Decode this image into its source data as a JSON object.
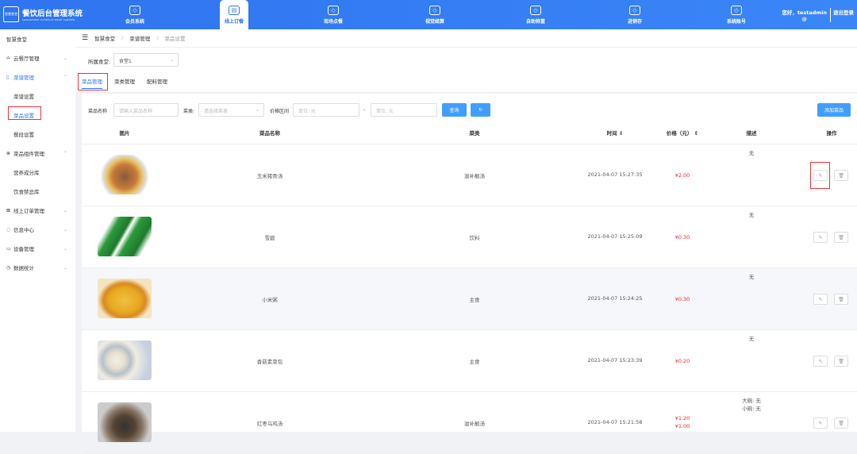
{
  "header": {
    "logo_badge": "智慧食堂",
    "title": "餐饮后台管理系统",
    "subtitle": "MANAGEMENT SYSTEM OF SMART CANTEEN",
    "nav": [
      {
        "label": "会员系统",
        "icon": "diamond-icon"
      },
      {
        "label": "线上订餐",
        "icon": "shop-icon",
        "active": true
      },
      {
        "label": "现场点餐",
        "icon": "dish-icon"
      },
      {
        "label": "视觉结算",
        "icon": "scan-eye-icon"
      },
      {
        "label": "自助称重",
        "icon": "scale-icon"
      },
      {
        "label": "进销存",
        "icon": "warehouse-icon"
      },
      {
        "label": "系统账号",
        "icon": "users-icon"
      }
    ],
    "greeting": "您好，testadmin",
    "user_suffix": "@",
    "logout": "退出登录"
  },
  "sidebar": {
    "title": "智慧食堂",
    "items": [
      {
        "label": "云餐厅管理",
        "icon": "restaurant-icon",
        "chev": "⌄"
      },
      {
        "label": "菜谱管理",
        "icon": "book-icon",
        "chev": "⌃",
        "active": true
      },
      {
        "label": "菜谱设置",
        "sub": true
      },
      {
        "label": "菜品设置",
        "sub": true,
        "active": true
      },
      {
        "label": "餐段设置",
        "sub": true
      },
      {
        "label": "菜品组件管理",
        "icon": "component-icon",
        "chev": "⌃"
      },
      {
        "label": "营养成分库",
        "sub": true
      },
      {
        "label": "饮食禁忌库",
        "sub": true
      },
      {
        "label": "线上订单管理",
        "icon": "order-icon",
        "chev": "⌄"
      },
      {
        "label": "信息中心",
        "icon": "message-icon",
        "chev": "⌄"
      },
      {
        "label": "设备管理",
        "icon": "device-icon",
        "chev": "⌄"
      },
      {
        "label": "数据统计",
        "icon": "chart-icon",
        "chev": "⌄"
      }
    ]
  },
  "breadcrumb": [
    "智慧食堂",
    "菜谱管理",
    "菜品设置"
  ],
  "filter": {
    "canteen_label": "所属食堂:",
    "canteen_value": "食堂1"
  },
  "tabs": [
    "菜品管理",
    "菜类管理",
    "配料管理"
  ],
  "search": {
    "name_label": "菜品名称",
    "name_placeholder": "请输入菜品名称",
    "cat_label": "菜类:",
    "cat_placeholder": "请选择菜类",
    "price_label": "价格区间",
    "price_min_placeholder": "单位: 元",
    "dash": "-",
    "price_max_placeholder": "单位: 元",
    "query": "查询",
    "reset_icon": "refresh-icon",
    "add": "添加菜品"
  },
  "table": {
    "columns": [
      "图片",
      "菜品名称",
      "菜类",
      "时间 ⇕",
      "价格（元） ⇕",
      "描述",
      "操作"
    ],
    "rows": [
      {
        "name": "玉米猪骨汤",
        "category": "滋补靓汤",
        "time": "2021-04-07 15:27:35",
        "prices": [
          "¥2.00"
        ],
        "desc": [
          "无"
        ]
      },
      {
        "name": "雪碧",
        "category": "饮料",
        "time": "2021-04-07 15:25:09",
        "prices": [
          "¥0.30"
        ],
        "desc": [
          "无"
        ]
      },
      {
        "name": "小米粥",
        "category": "主食",
        "time": "2021-04-07 15:24:25",
        "prices": [
          "¥0.30"
        ],
        "desc": [
          "无"
        ]
      },
      {
        "name": "香菇素菜包",
        "category": "主食",
        "time": "2021-04-07 15:23:39",
        "prices": [
          "¥0.20"
        ],
        "desc": [
          "无"
        ]
      },
      {
        "name": "红枣乌鸡汤",
        "category": "滋补靓汤",
        "time": "2021-04-07 15:21:58",
        "prices": [
          "¥1.20",
          "¥1.00"
        ],
        "desc": [
          "大碗: 无",
          "小碗: 无"
        ]
      }
    ]
  },
  "colors": {
    "primary": "#2f74f0",
    "button": "#409eff",
    "price": "#e22222",
    "highlight": "#e33333"
  }
}
